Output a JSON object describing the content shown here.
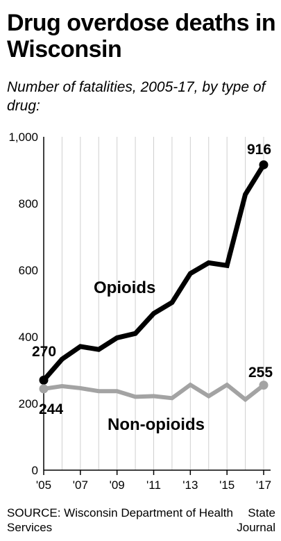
{
  "title": "Drug overdose deaths in Wisconsin",
  "subtitle": "Number of fatalities, 2005-17, by type of drug:",
  "source": "SOURCE: Wisconsin Department of Health Services",
  "credit": "State Journal",
  "chart_data": {
    "type": "line",
    "title": "Drug overdose deaths in Wisconsin",
    "subtitle": "Number of fatalities, 2005-17, by type of drug:",
    "x": [
      2005,
      2006,
      2007,
      2008,
      2009,
      2010,
      2011,
      2012,
      2013,
      2014,
      2015,
      2016,
      2017
    ],
    "x_tick_values": [
      2005,
      2007,
      2009,
      2011,
      2013,
      2015,
      2017
    ],
    "x_tick_labels": [
      "'05",
      "'07",
      "'09",
      "'11",
      "'13",
      "'15",
      "'17"
    ],
    "xlim": [
      2005,
      2017
    ],
    "ylim": [
      0,
      1000
    ],
    "y_tick_values": [
      0,
      200,
      400,
      600,
      800,
      1000
    ],
    "y_tick_labels": [
      "0",
      "200",
      "400",
      "600",
      "800",
      "1,000"
    ],
    "grid": "vertical",
    "series": [
      {
        "name": "Opioids",
        "color": "#000000",
        "values": [
          270,
          333,
          371,
          362,
          397,
          410,
          470,
          503,
          590,
          622,
          614,
          827,
          916
        ],
        "end_labels": [
          "270",
          "916"
        ]
      },
      {
        "name": "Non-opioids",
        "color": "#a3a3a3",
        "values": [
          244,
          252,
          246,
          237,
          237,
          220,
          222,
          216,
          256,
          222,
          256,
          212,
          255
        ],
        "end_labels": [
          "244",
          "255"
        ]
      }
    ]
  }
}
